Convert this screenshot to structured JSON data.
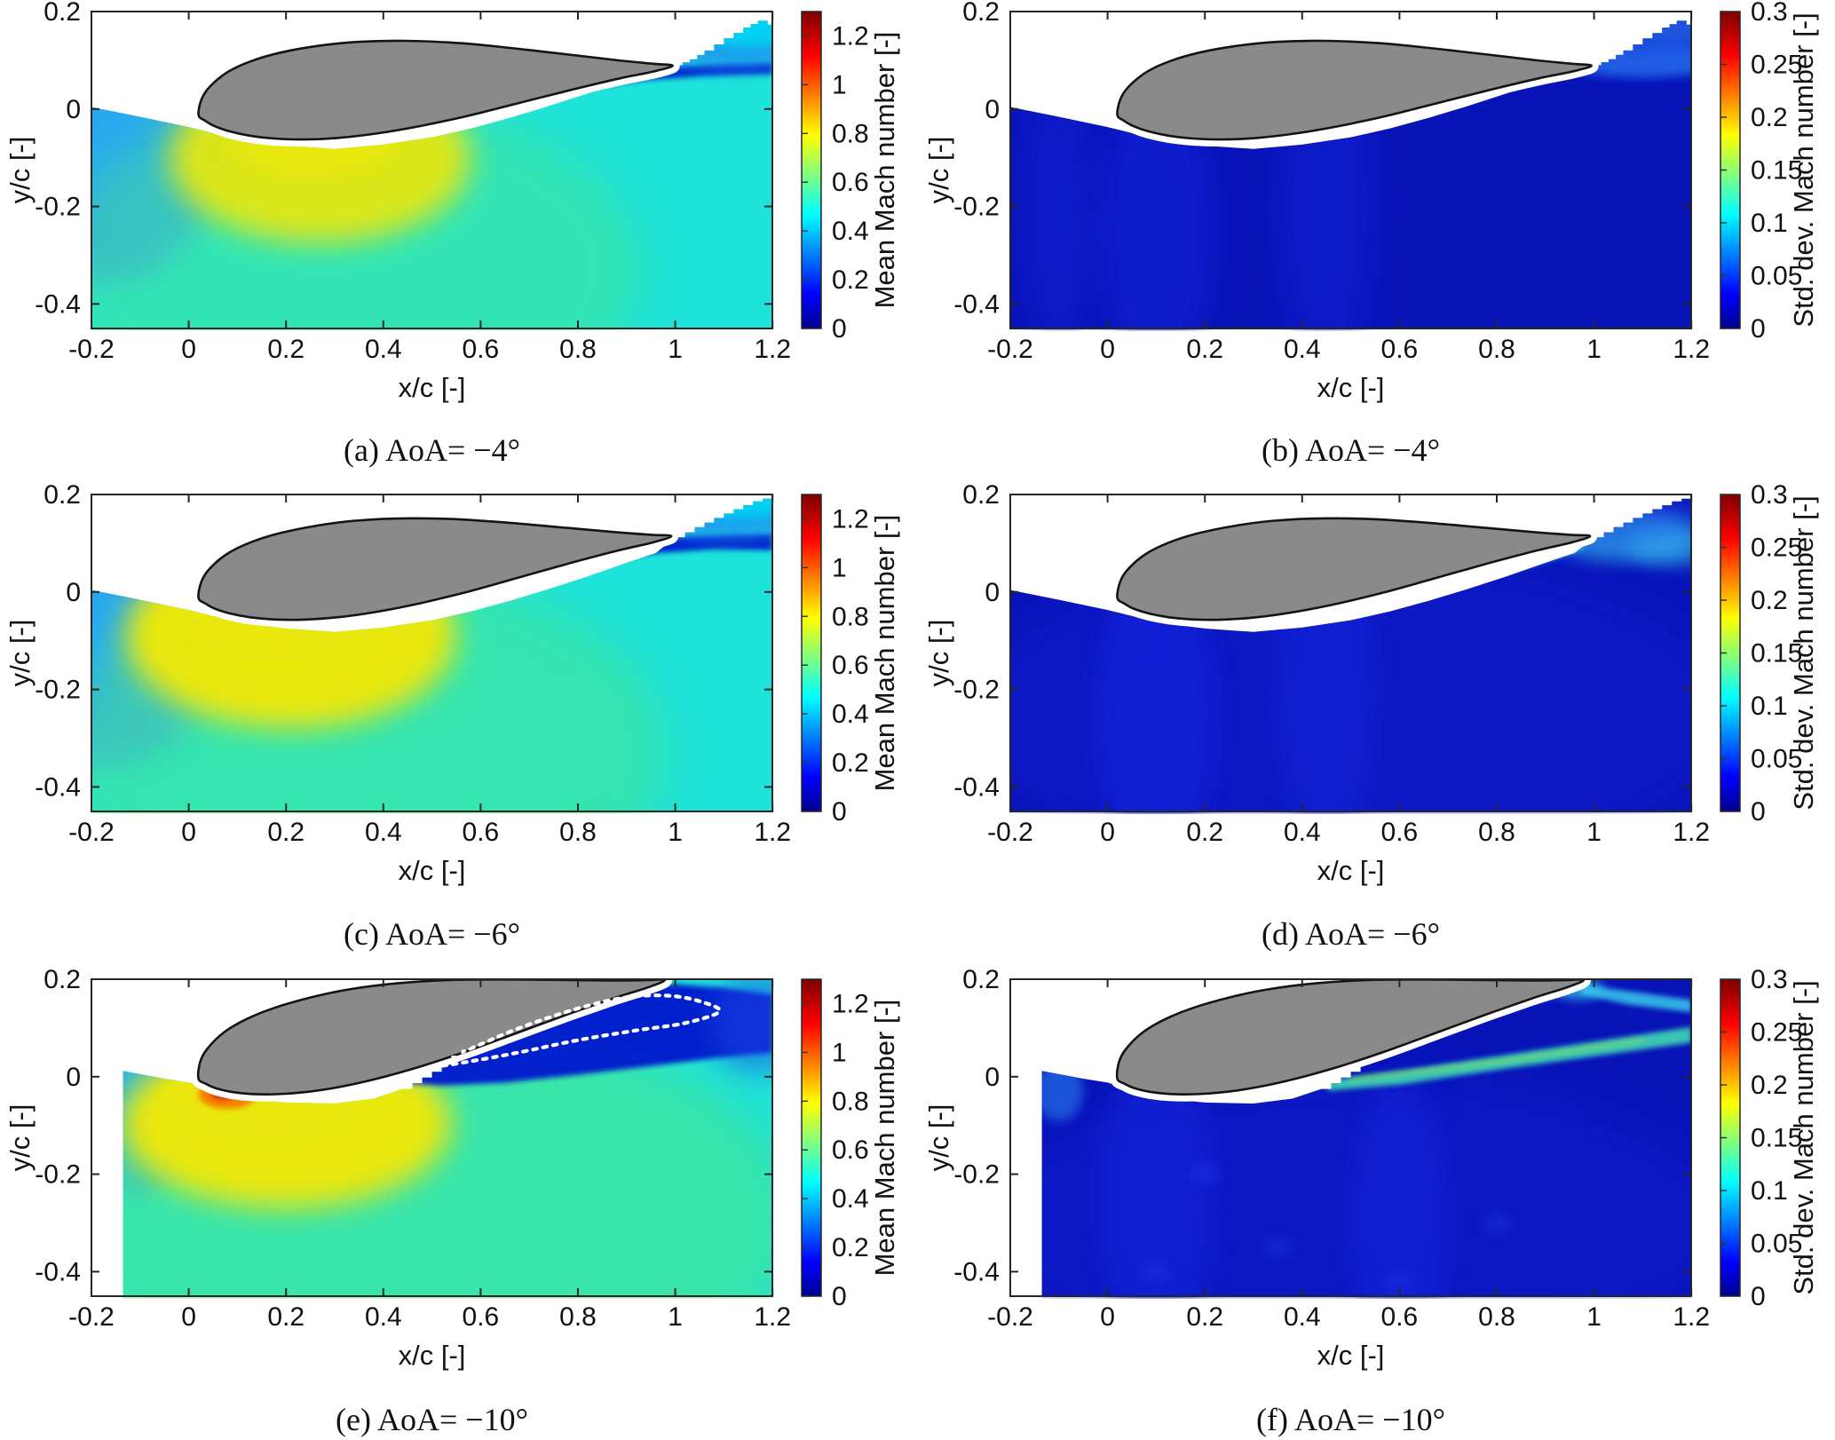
{
  "figure": {
    "background": "#ffffff",
    "frame_color": "#262626",
    "text_color": "#111111",
    "airfoil": {
      "fill": "#8a8a8a",
      "outline": "#141414",
      "halo": "#ffffff"
    },
    "jet_stops": [
      [
        "0%",
        "#00008f"
      ],
      [
        "11%",
        "#0000ff"
      ],
      [
        "36%",
        "#00ffff"
      ],
      [
        "61%",
        "#ffff00"
      ],
      [
        "86%",
        "#ff0000"
      ],
      [
        "100%",
        "#7d0000"
      ]
    ],
    "palettes": {
      "mean": {
        "base": "#1ee3da",
        "light_blue": "#2ba7f1",
        "green": "#52e87d",
        "yellow": "#e9e70b",
        "orange": "#f57d00",
        "red": "#e22c00",
        "navy": "#0016cd",
        "band_blue": "#1e8bf0",
        "cyan_cap": "#00d2f2",
        "mid_blue": "#1b44e6"
      },
      "std": {
        "base": "#0813b8",
        "column": "#1626df",
        "band_blue": "#2a80ee",
        "cyan": "#37c9ec",
        "green_core": "#a8e245",
        "teal": "#3fd9b4",
        "soft_blue": "#1a49e4",
        "speckle": "#1e33e0"
      }
    }
  },
  "chart_data": [
    {
      "panel": "a",
      "type": "heatmap",
      "colormap": "jet",
      "aoa_deg": -4,
      "title": "(a) AoA= −4°",
      "quantity": "Mean Mach number [-]",
      "xlabel": "x/c [-]",
      "ylabel": "y/c [-]",
      "x_range": [
        -0.2,
        1.2
      ],
      "y_range": [
        -0.45,
        0.2
      ],
      "x_ticks": [
        -0.2,
        0,
        0.2,
        0.4,
        0.6,
        0.8,
        1,
        1.2
      ],
      "x_tick_labels": [
        "-0.2",
        "0",
        "0.2",
        "0.4",
        "0.6",
        "0.8",
        "1",
        "1.2"
      ],
      "y_ticks": [
        0.2,
        0,
        -0.2,
        -0.4
      ],
      "y_tick_labels": [
        "0.2",
        "0",
        "-0.2",
        "-0.4"
      ],
      "colorbar": {
        "label": "Mean Mach number [-]",
        "range": [
          0,
          1.3
        ],
        "ticks": [
          0,
          0.2,
          0.4,
          0.6,
          0.8,
          1,
          1.2
        ],
        "tick_labels": [
          "0",
          "0.2",
          "0.4",
          "0.6",
          "0.8",
          "1",
          "1.2"
        ]
      },
      "features": [
        "free-stream field Mach ≈ 0.4–0.5 (cyan)",
        "acceleration to Mach ≈ 0.8 below the leading edge (yellow-green blob)",
        "low-Mach layer along the aft suction side continuing into the trailing-edge wake (dark blue)",
        "grey filled airfoil section with white no-data halo; white region above the model"
      ]
    },
    {
      "panel": "b",
      "type": "heatmap",
      "colormap": "jet",
      "aoa_deg": -4,
      "title": "(b) AoA= −4°",
      "quantity": "Std. dev. Mach number [-]",
      "xlabel": "x/c [-]",
      "ylabel": "y/c [-]",
      "x_range": [
        -0.2,
        1.2
      ],
      "y_range": [
        -0.45,
        0.2
      ],
      "x_ticks": [
        -0.2,
        0,
        0.2,
        0.4,
        0.6,
        0.8,
        1,
        1.2
      ],
      "x_tick_labels": [
        "-0.2",
        "0",
        "0.2",
        "0.4",
        "0.6",
        "0.8",
        "1",
        "1.2"
      ],
      "y_ticks": [
        0.2,
        0,
        -0.2,
        -0.4
      ],
      "y_tick_labels": [
        "0.2",
        "0",
        "-0.2",
        "-0.4"
      ],
      "colorbar": {
        "label": "Std. dev. Mach number [-]",
        "range": [
          0,
          0.3
        ],
        "ticks": [
          0,
          0.05,
          0.1,
          0.15,
          0.2,
          0.25,
          0.3
        ],
        "tick_labels": [
          "0",
          "0.05",
          "0.1",
          "0.15",
          "0.2",
          "0.25",
          "0.3"
        ]
      },
      "features": [
        "std. dev. ≈ 0–0.05 nearly everywhere (dark blue)",
        "slightly elevated fluctuations in the thin trailing-edge wake band (light blue)"
      ]
    },
    {
      "panel": "c",
      "type": "heatmap",
      "colormap": "jet",
      "aoa_deg": -6,
      "title": "(c) AoA= −6°",
      "quantity": "Mean Mach number [-]",
      "xlabel": "x/c [-]",
      "ylabel": "y/c [-]",
      "x_range": [
        -0.2,
        1.2
      ],
      "y_range": [
        -0.45,
        0.2
      ],
      "x_ticks": [
        -0.2,
        0,
        0.2,
        0.4,
        0.6,
        0.8,
        1,
        1.2
      ],
      "x_tick_labels": [
        "-0.2",
        "0",
        "0.2",
        "0.4",
        "0.6",
        "0.8",
        "1",
        "1.2"
      ],
      "y_ticks": [
        0.2,
        0,
        -0.2,
        -0.4
      ],
      "y_tick_labels": [
        "0.2",
        "0",
        "-0.2",
        "-0.4"
      ],
      "colorbar": {
        "label": "Mean Mach number [-]",
        "range": [
          0,
          1.3
        ],
        "ticks": [
          0,
          0.2,
          0.4,
          0.6,
          0.8,
          1,
          1.2
        ],
        "tick_labels": [
          "0",
          "0.2",
          "0.4",
          "0.6",
          "0.8",
          "1",
          "1.2"
        ]
      },
      "features": [
        "stronger acceleration to Mach ≈ 0.8–0.9 under the leading edge (bright yellow)",
        "thicker low-Mach separated layer along the aft suction side extending past the trailing edge (dark blue)"
      ]
    },
    {
      "panel": "d",
      "type": "heatmap",
      "colormap": "jet",
      "aoa_deg": -6,
      "title": "(d) AoA= −6°",
      "quantity": "Std. dev. Mach number [-]",
      "xlabel": "x/c [-]",
      "ylabel": "y/c [-]",
      "x_range": [
        -0.2,
        1.2
      ],
      "y_range": [
        -0.45,
        0.2
      ],
      "x_ticks": [
        -0.2,
        0,
        0.2,
        0.4,
        0.6,
        0.8,
        1,
        1.2
      ],
      "x_tick_labels": [
        "-0.2",
        "0",
        "0.2",
        "0.4",
        "0.6",
        "0.8",
        "1",
        "1.2"
      ],
      "y_ticks": [
        0.2,
        0,
        -0.2,
        -0.4
      ],
      "y_tick_labels": [
        "0.2",
        "0",
        "-0.2",
        "-0.4"
      ],
      "colorbar": {
        "label": "Std. dev. Mach number [-]",
        "range": [
          0,
          0.3
        ],
        "ticks": [
          0,
          0.05,
          0.1,
          0.15,
          0.2,
          0.25,
          0.3
        ],
        "tick_labels": [
          "0",
          "0.05",
          "0.1",
          "0.15",
          "0.2",
          "0.25",
          "0.3"
        ]
      },
      "features": [
        "elevated std. dev. ≈ 0.1–0.2 along the separated shear layer near the trailing edge (cyan-green streak)",
        "fluctuation fan spreading behind the trailing edge"
      ]
    },
    {
      "panel": "e",
      "type": "heatmap",
      "colormap": "jet",
      "aoa_deg": -10,
      "title": "(e) AoA= −10°",
      "quantity": "Mean Mach number [-]",
      "xlabel": "x/c [-]",
      "ylabel": "y/c [-]",
      "x_range": [
        -0.2,
        1.2
      ],
      "y_range": [
        -0.45,
        0.2
      ],
      "x_ticks": [
        -0.2,
        0,
        0.2,
        0.4,
        0.6,
        0.8,
        1,
        1.2
      ],
      "x_tick_labels": [
        "-0.2",
        "0",
        "0.2",
        "0.4",
        "0.6",
        "0.8",
        "1",
        "1.2"
      ],
      "y_ticks": [
        0.2,
        0,
        -0.2,
        -0.4
      ],
      "y_tick_labels": [
        "0.2",
        "0",
        "-0.2",
        "-0.4"
      ],
      "colorbar": {
        "label": "Mean Mach number [-]",
        "range": [
          0,
          1.3
        ],
        "ticks": [
          0,
          0.2,
          0.4,
          0.6,
          0.8,
          1,
          1.2
        ],
        "tick_labels": [
          "0",
          "0.2",
          "0.4",
          "0.6",
          "0.8",
          "1",
          "1.2"
        ]
      },
      "features": [
        "local supersonic pocket Mach ≈ 1.2 at the leading edge (red-orange spot)",
        "yellow high-speed band along the front lower surface",
        "large low-Mach separated region above the aft suction side (dark blue) outlined by a white dotted contour",
        "measurement domain starts at x/c ≈ −0.13"
      ]
    },
    {
      "panel": "f",
      "type": "heatmap",
      "colormap": "jet",
      "aoa_deg": -10,
      "title": "(f) AoA= −10°",
      "quantity": "Std. dev. Mach number [-]",
      "xlabel": "x/c [-]",
      "ylabel": "y/c [-]",
      "x_range": [
        -0.2,
        1.2
      ],
      "y_range": [
        -0.45,
        0.2
      ],
      "x_ticks": [
        -0.2,
        0,
        0.2,
        0.4,
        0.6,
        0.8,
        1,
        1.2
      ],
      "x_tick_labels": [
        "-0.2",
        "0",
        "0.2",
        "0.4",
        "0.6",
        "0.8",
        "1",
        "1.2"
      ],
      "y_ticks": [
        0.2,
        0,
        -0.2,
        -0.4
      ],
      "y_tick_labels": [
        "0.2",
        "0",
        "-0.2",
        "-0.4"
      ],
      "colorbar": {
        "label": "Std. dev. Mach number [-]",
        "range": [
          0,
          0.3
        ],
        "ticks": [
          0,
          0.05,
          0.1,
          0.15,
          0.2,
          0.25,
          0.3
        ],
        "tick_labels": [
          "0",
          "0.05",
          "0.1",
          "0.15",
          "0.2",
          "0.25",
          "0.3"
        ]
      },
      "features": [
        "high fluctuations ≈ 0.1–0.15 along the detached shear layer from mid-chord past the trailing edge (cyan-green streaks)",
        "second fluctuation streak from the trailing edge",
        "measurement domain starts at x/c ≈ −0.13"
      ]
    }
  ]
}
